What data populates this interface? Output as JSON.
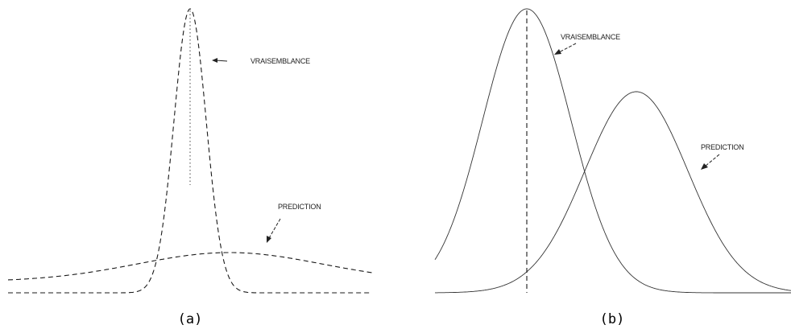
{
  "panel_a": {
    "label_likelihood": "VRAISEMBLANCE",
    "label_prediction": "PREDICTION",
    "caption": "(a)"
  },
  "panel_b": {
    "label_likelihood": "VRAISEMBLANCE",
    "label_prediction": "PREDICTION",
    "caption": "(b)"
  }
}
